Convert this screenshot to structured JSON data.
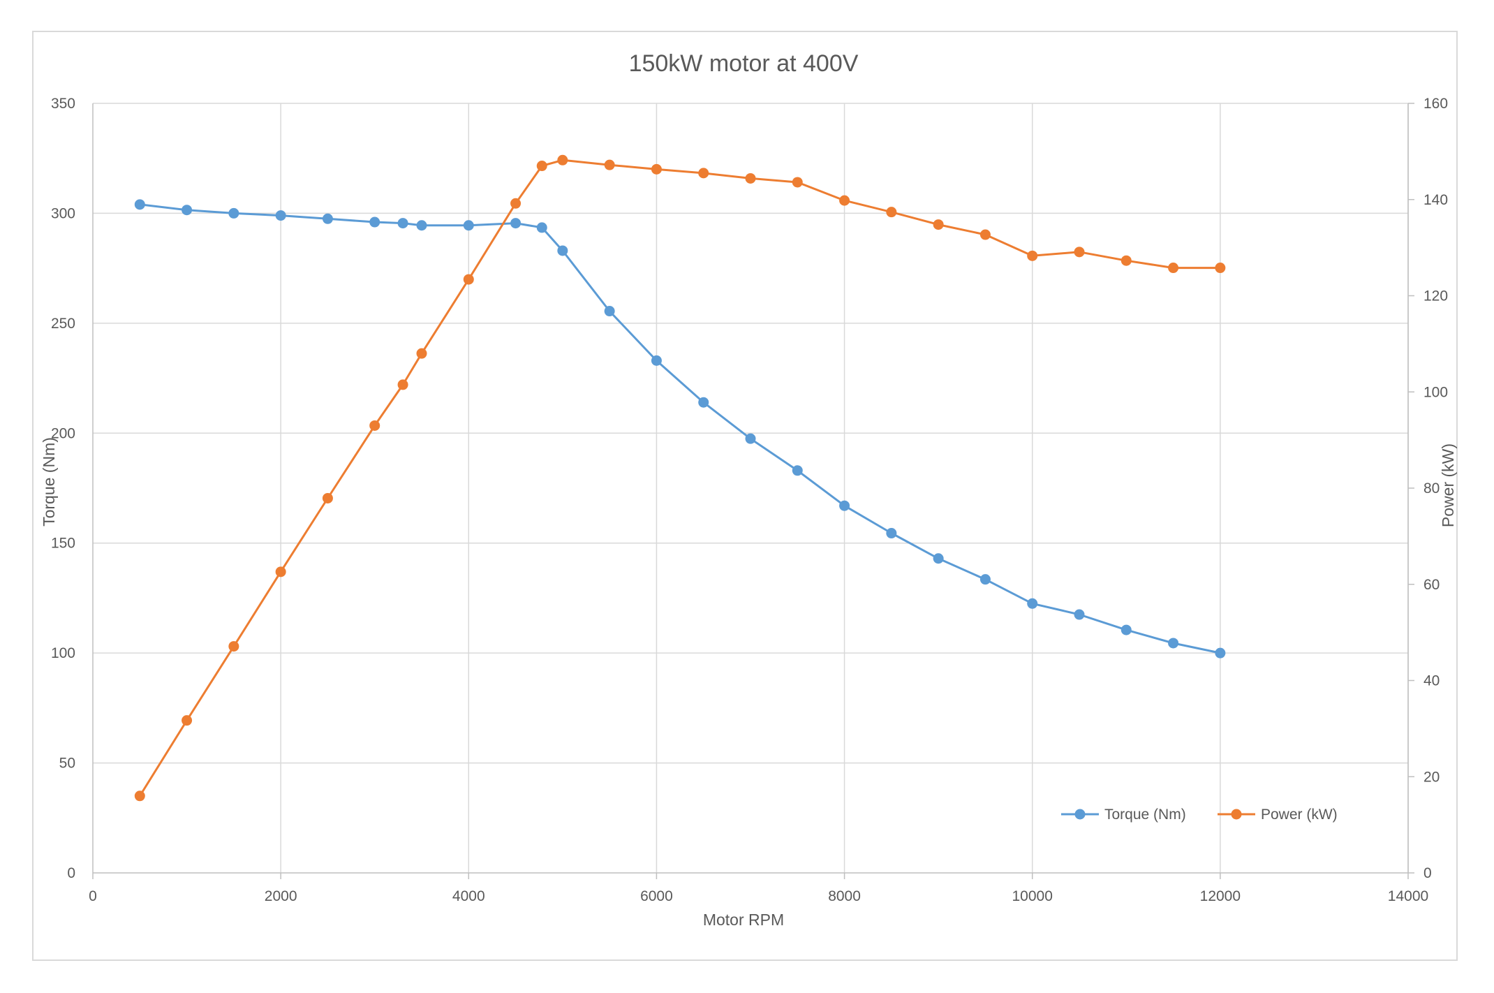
{
  "chart_data": {
    "type": "line",
    "title": "150kW motor at 400V",
    "xlabel": "Motor RPM",
    "ylabel": "Torque (Nm)",
    "y2label": "Power (kW)",
    "xlim": [
      0,
      14000
    ],
    "ylim": [
      0,
      350
    ],
    "y2lim": [
      0,
      160
    ],
    "xticks": [
      0,
      2000,
      4000,
      6000,
      8000,
      10000,
      12000,
      14000
    ],
    "yticks": [
      0,
      50,
      100,
      150,
      200,
      250,
      300,
      350
    ],
    "y2ticks": [
      0,
      20,
      40,
      60,
      80,
      100,
      120,
      140,
      160
    ],
    "grid": true,
    "legend_position": "bottom-right",
    "series": [
      {
        "name": "Torque (Nm)",
        "axis": "left",
        "color": "#5b9bd5",
        "x": [
          500,
          1000,
          1500,
          2000,
          2500,
          3000,
          3300,
          3500,
          4000,
          4500,
          4780,
          5000,
          5500,
          6000,
          6500,
          7000,
          7500,
          8000,
          8500,
          9000,
          9500,
          10000,
          10500,
          11000,
          11500,
          12000
        ],
        "y": [
          304,
          301.5,
          300,
          299,
          297.5,
          296,
          295.5,
          294.5,
          294.5,
          295.5,
          293.5,
          283,
          255.5,
          233,
          214,
          197.5,
          183,
          167,
          154.5,
          143,
          133.5,
          122.5,
          117.5,
          110.5,
          104.5,
          100
        ]
      },
      {
        "name": "Power (kW)",
        "axis": "right",
        "color": "#ed7d31",
        "x": [
          500,
          1000,
          1500,
          2000,
          2500,
          3000,
          3300,
          3500,
          4000,
          4500,
          4780,
          5000,
          5500,
          6000,
          6500,
          7000,
          7500,
          8000,
          8500,
          9000,
          9500,
          10000,
          10500,
          11000,
          11500,
          12000
        ],
        "y": [
          16,
          31.7,
          47.1,
          62.6,
          77.9,
          93,
          101.5,
          108,
          123.4,
          139.2,
          147,
          148.2,
          147.2,
          146.3,
          145.5,
          144.4,
          143.6,
          139.8,
          137.4,
          134.8,
          132.7,
          128.3,
          129.1,
          127.3,
          125.8,
          125.8
        ]
      }
    ]
  }
}
